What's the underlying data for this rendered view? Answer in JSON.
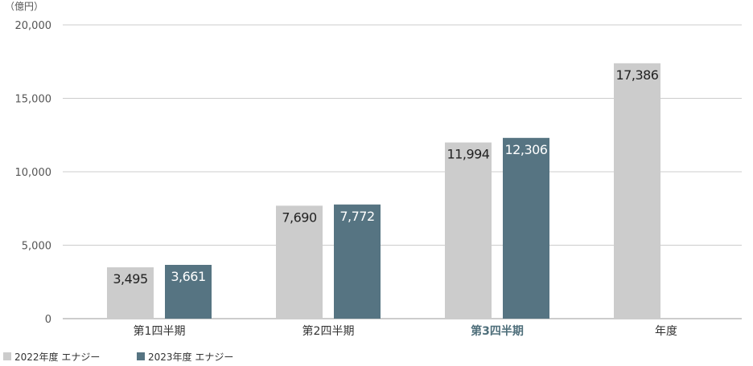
{
  "chart_data": {
    "type": "bar",
    "unit_label": "（億円）",
    "categories": [
      "第1四半期",
      "第2四半期",
      "第3四半期",
      "年度"
    ],
    "highlight_category": "第3四半期",
    "series": [
      {
        "name": "2022年度 エナジー",
        "color": "#cccccc",
        "label_color": "#222222",
        "values": [
          3495,
          7690,
          11994,
          17386
        ],
        "value_labels": [
          "3,495",
          "7,690",
          "11,994",
          "17,386"
        ]
      },
      {
        "name": "2023年度 エナジー",
        "color": "#567482",
        "label_color": "#ffffff",
        "values": [
          3661,
          7772,
          12306,
          null
        ],
        "value_labels": [
          "3,661",
          "7,772",
          "12,306",
          ""
        ]
      }
    ],
    "y_ticks": [
      {
        "value": 0,
        "label": "0"
      },
      {
        "value": 5000,
        "label": "5,000"
      },
      {
        "value": 10000,
        "label": "10,000"
      },
      {
        "value": 15000,
        "label": "15,000"
      },
      {
        "value": 20000,
        "label": "20,000"
      }
    ],
    "ylim": [
      0,
      20000
    ],
    "grid": true,
    "legend_position": "bottom-left",
    "colors": {
      "grid": "#cccccc",
      "axis": "#999999",
      "highlight_text": "#4f6f7b"
    }
  }
}
